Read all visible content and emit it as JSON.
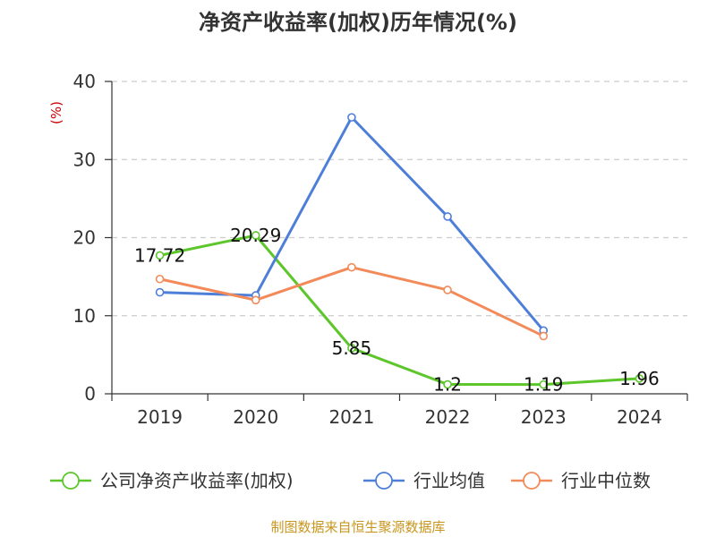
{
  "chart_data": {
    "type": "line",
    "title": "净资产收益率(加权)历年情况(%)",
    "ylabel": "(%)",
    "xlabel": "",
    "categories": [
      "2019",
      "2020",
      "2021",
      "2022",
      "2023",
      "2024"
    ],
    "ylim": [
      0,
      40
    ],
    "yticks": [
      0,
      10,
      20,
      30,
      40
    ],
    "grid": true,
    "legend_position": "bottom",
    "series": [
      {
        "name": "公司净资产收益率(加权)",
        "color": "#5cc62a",
        "values": [
          17.72,
          20.29,
          5.85,
          1.2,
          1.19,
          1.96
        ],
        "labels": [
          "17.72",
          "20.29",
          "5.85",
          "1.2",
          "1.19",
          "1.96"
        ]
      },
      {
        "name": "行业均值",
        "color": "#4e7fd8",
        "values": [
          13.0,
          12.6,
          35.4,
          22.7,
          8.1,
          null
        ],
        "labels": null
      },
      {
        "name": "行业中位数",
        "color": "#f28a5a",
        "values": [
          14.7,
          12.0,
          16.2,
          13.3,
          7.4,
          null
        ],
        "labels": null
      }
    ]
  },
  "footer": {
    "source": "制图数据来自恒生聚源数据库",
    "source_color": "#c8961e"
  },
  "colors": {
    "ylabel": "#cc0000",
    "grid": "#cccccc",
    "axis": "#333333"
  }
}
